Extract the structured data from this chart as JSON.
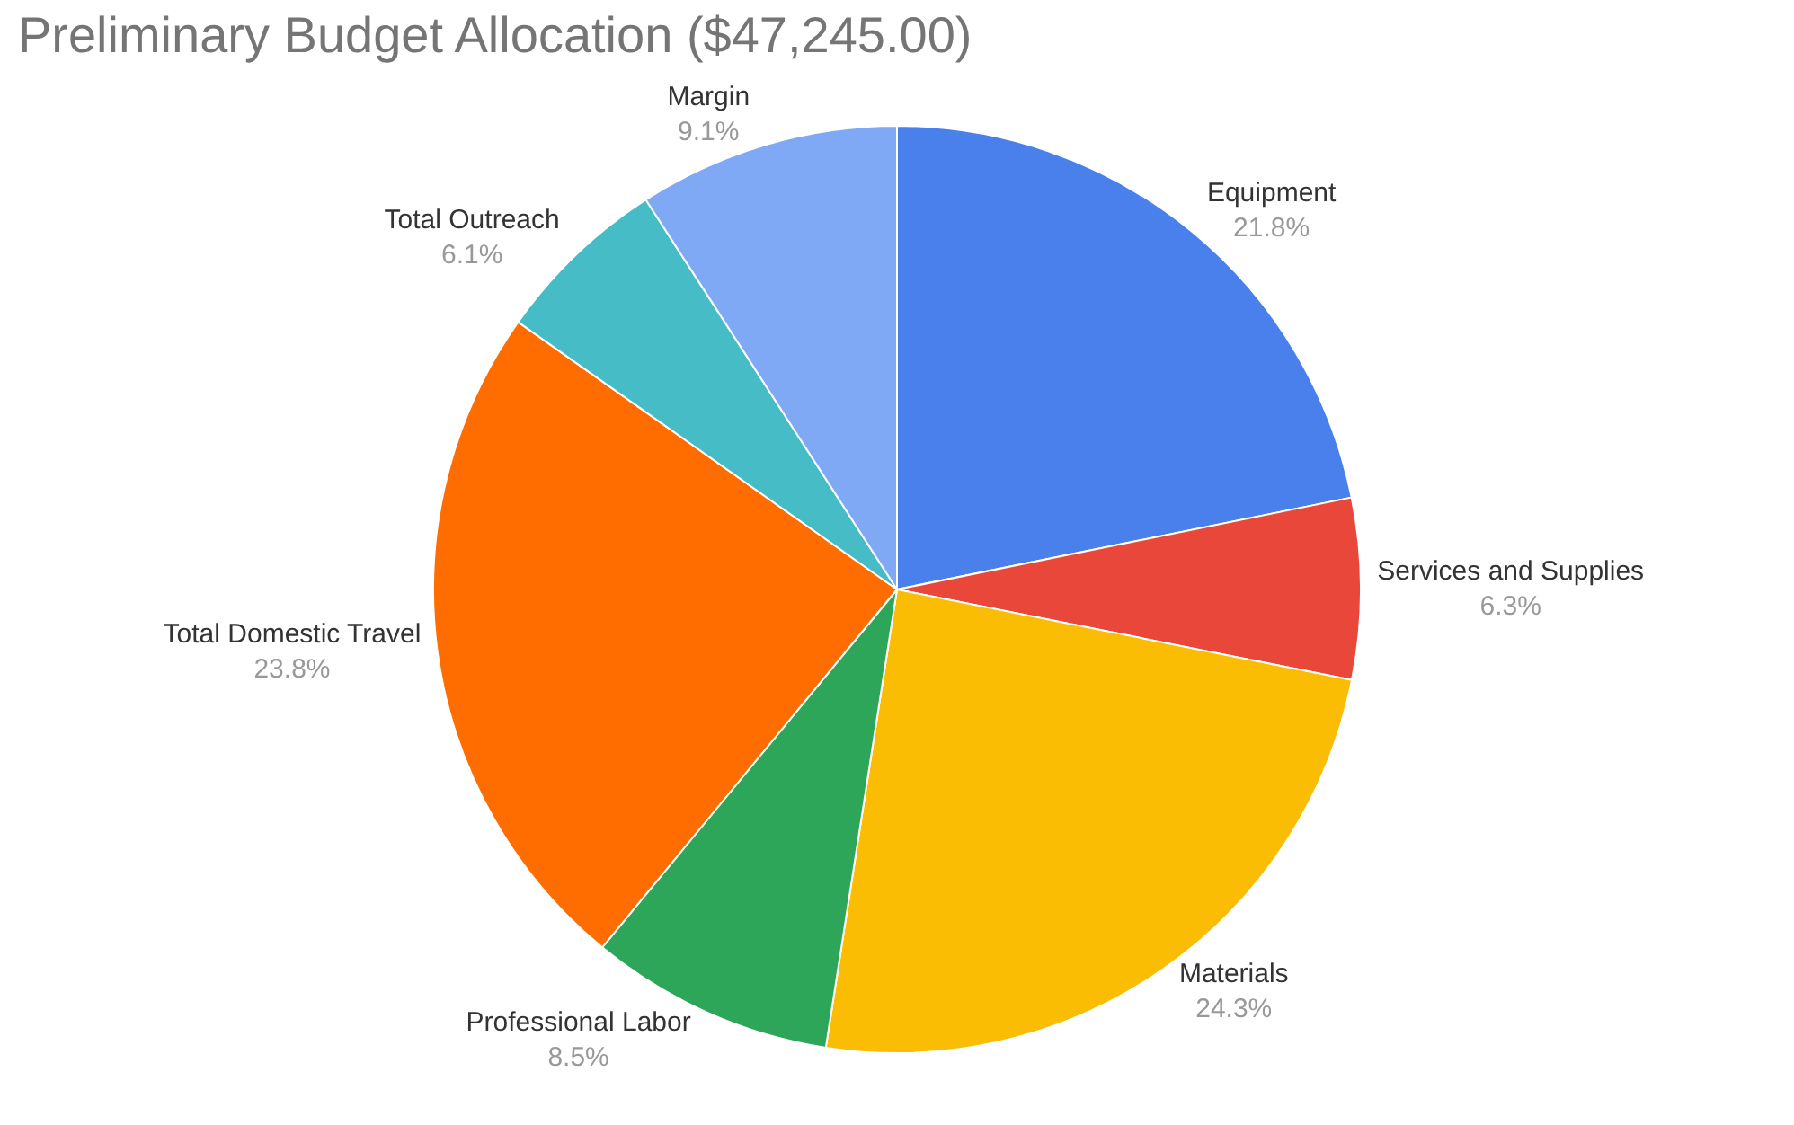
{
  "chart_data": {
    "type": "pie",
    "title": "Preliminary Budget Allocation ($47,245.00)",
    "categories": [
      "Equipment",
      "Services and Supplies",
      "Materials",
      "Professional Labor",
      "Total Domestic Travel",
      "Total Outreach",
      "Margin"
    ],
    "values": [
      21.8,
      6.3,
      24.3,
      8.5,
      23.8,
      6.1,
      9.1
    ],
    "value_labels": [
      "21.8%",
      "6.3%",
      "24.3%",
      "8.5%",
      "23.8%",
      "6.1%",
      "9.1%"
    ],
    "colors": [
      "#4a80ec",
      "#e8473a",
      "#fbbc04",
      "#2ea65a",
      "#ff6d00",
      "#45bcc6",
      "#7fa8f5"
    ],
    "legend": false
  }
}
